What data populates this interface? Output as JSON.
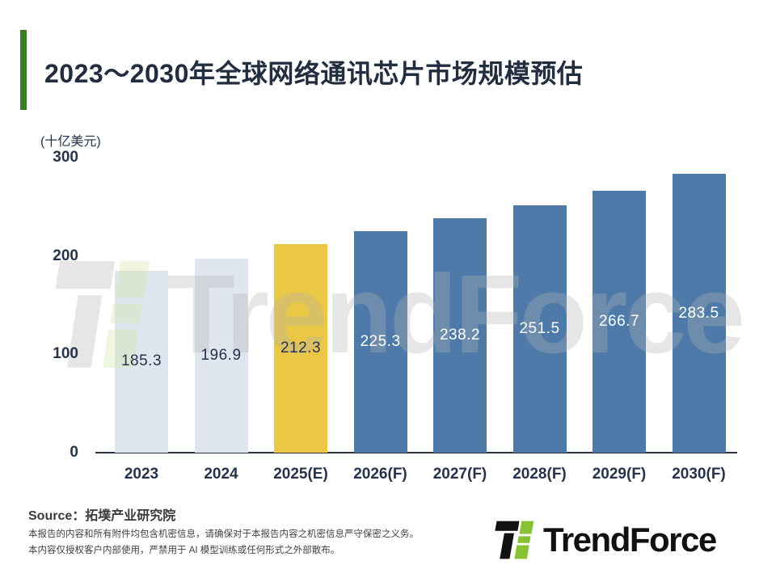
{
  "page_title": "2023～2030年全球网络通讯芯片市场规模预估",
  "colors": {
    "accent_green": "#3e7b27",
    "title_text": "#222d3f",
    "axis_text": "#26334a",
    "bar_light": "#e0e6ef",
    "bar_highlight": "#eac744",
    "bar_blue": "#4d7aa9",
    "logo_black": "#111111",
    "logo_green": "#86c232",
    "watermark_gray": "#b3b3b3",
    "watermark_green": "#cfe39b"
  },
  "chart_data": {
    "type": "bar",
    "title": "2023～2030年全球网络通讯芯片市场规模预估",
    "unit_label": "(十亿美元)",
    "categories": [
      "2023",
      "2024",
      "2025(E)",
      "2026(F)",
      "2027(F)",
      "2028(F)",
      "2029(F)",
      "2030(F)"
    ],
    "values": [
      185.3,
      196.9,
      212.3,
      225.3,
      238.2,
      251.5,
      266.7,
      283.5
    ],
    "bar_colors": [
      "#e0e6ef",
      "#e0e6ef",
      "#eac744",
      "#4d7aa9",
      "#4d7aa9",
      "#4d7aa9",
      "#4d7aa9",
      "#4d7aa9"
    ],
    "label_colors": [
      "#26334a",
      "#26334a",
      "#26334a",
      "#ffffff",
      "#ffffff",
      "#ffffff",
      "#ffffff",
      "#ffffff"
    ],
    "xlabel": "",
    "ylabel": "(十亿美元)",
    "ylim": [
      0,
      300
    ],
    "yticks": [
      0,
      100,
      200,
      300
    ],
    "grid": false,
    "legend": false,
    "value_label_position": "inside-center"
  },
  "watermark_text": "TrendForce",
  "source_label": "Source：拓墣产业研究院",
  "disclaimer": {
    "line1": "本报告的内容和所有附件均包含机密信息，请确保对于本报告内容之机密信息严守保密之义务。",
    "line2": "本内容仅授权客户内部使用，严禁用于 AI 模型训练或任何形式之外部散布。"
  },
  "logo_text": "TrendForce"
}
